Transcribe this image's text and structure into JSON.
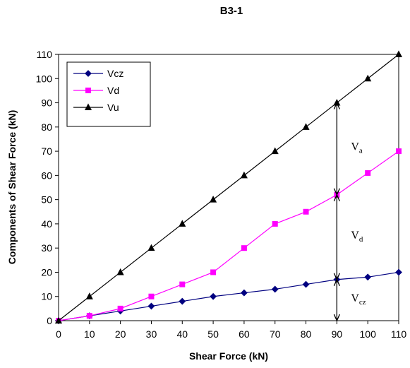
{
  "chart_data": {
    "type": "line",
    "title": "B3-1",
    "xlabel": "Shear Force (kN)",
    "ylabel": "Components of Shear Force (kN)",
    "xlim": [
      0,
      110
    ],
    "ylim": [
      0,
      110
    ],
    "x_ticks": [
      0,
      10,
      20,
      30,
      40,
      50,
      60,
      70,
      80,
      90,
      100,
      110
    ],
    "y_ticks": [
      0,
      10,
      20,
      30,
      40,
      50,
      60,
      70,
      80,
      90,
      100,
      110
    ],
    "grid": false,
    "legend_position": "top-left",
    "x": [
      0,
      10,
      20,
      30,
      40,
      50,
      60,
      70,
      80,
      90,
      100,
      110
    ],
    "series": [
      {
        "name": "Vcz",
        "color": "#000080",
        "marker": "diamond",
        "values": [
          0,
          2,
          4,
          6,
          8,
          10,
          11.5,
          13,
          15,
          17,
          18,
          20
        ]
      },
      {
        "name": "Vd",
        "color": "#FF00FF",
        "marker": "square",
        "values": [
          0,
          2,
          5,
          10,
          15,
          20,
          30,
          40,
          45,
          52,
          61,
          70
        ]
      },
      {
        "name": "Vu",
        "color": "#000000",
        "marker": "triangle",
        "values": [
          0,
          10,
          20,
          30,
          40,
          50,
          60,
          70,
          80,
          90,
          100,
          110
        ]
      }
    ],
    "annotations": [
      {
        "main": "V",
        "sub": "a",
        "at_x": 90,
        "from": 52,
        "to": 90
      },
      {
        "main": "V",
        "sub": "d",
        "at_x": 90,
        "from": 17,
        "to": 52
      },
      {
        "main": "V",
        "sub": "cz",
        "at_x": 90,
        "from": 0,
        "to": 17
      }
    ]
  }
}
